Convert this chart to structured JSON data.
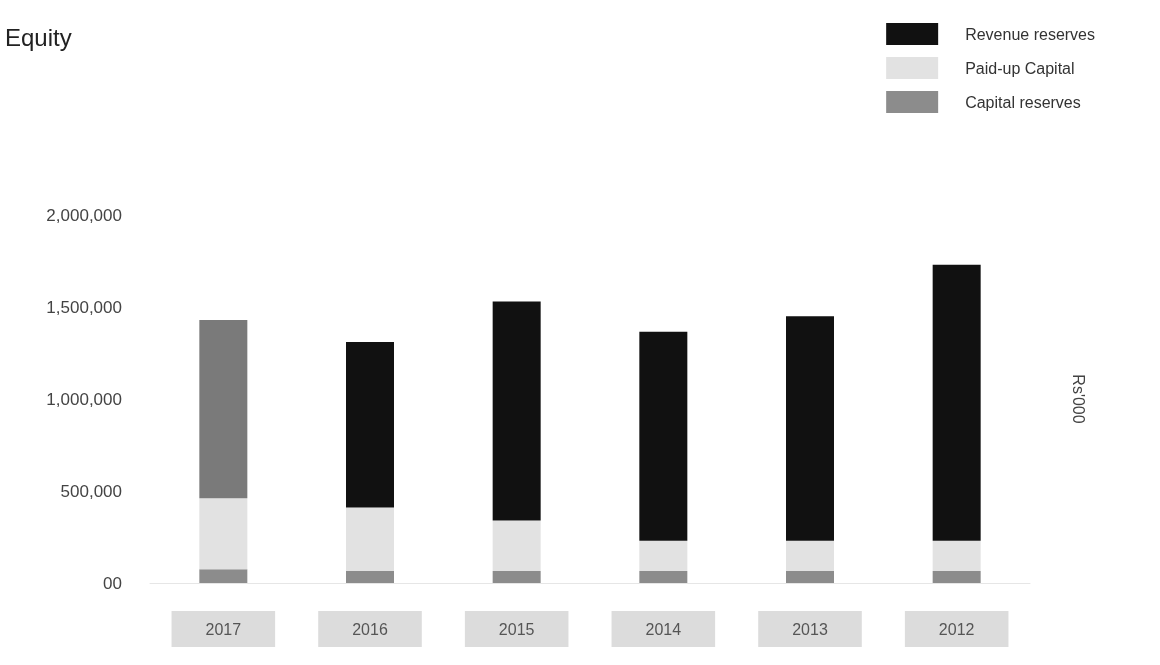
{
  "chart_data": {
    "type": "bar",
    "title": "Equity",
    "ylabel": "Rs'000",
    "categories": [
      "2017",
      "2016",
      "2015",
      "2014",
      "2013",
      "2012"
    ],
    "stacked": true,
    "legend": "top right",
    "grid": false,
    "ylim": [
      0,
      2000000
    ],
    "yticks": [
      {
        "value": 0,
        "label": "00"
      },
      {
        "value": 500000,
        "label": "500,000"
      },
      {
        "value": 1000000,
        "label": "1,000,000"
      },
      {
        "value": 1500000,
        "label": "1,500,000"
      },
      {
        "value": 2000000,
        "label": "2,000,000"
      }
    ],
    "series": [
      {
        "name": "Capital reserves",
        "color": "#8c8c8c",
        "values": [
          75000,
          65000,
          65000,
          65000,
          65000,
          65000
        ]
      },
      {
        "name": "Paid-up Capital",
        "color": "#e2e2e2",
        "values": [
          385000,
          345000,
          275000,
          165000,
          165000,
          165000
        ]
      },
      {
        "name": "Revenue reserves",
        "color": "#111111",
        "colors": [
          "#7a7a7a",
          "#111111",
          "#111111",
          "#111111",
          "#111111",
          "#111111"
        ],
        "values": [
          970000,
          900000,
          1190000,
          1135000,
          1220000,
          1500000
        ]
      }
    ]
  }
}
